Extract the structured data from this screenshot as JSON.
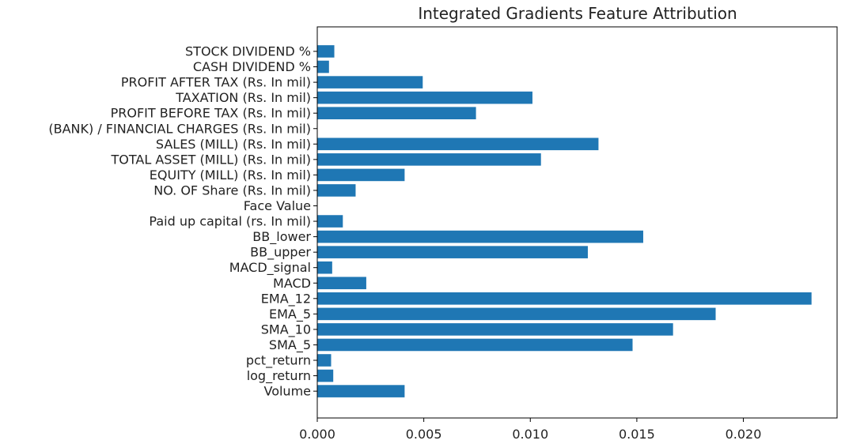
{
  "chart_data": {
    "type": "bar",
    "orientation": "horizontal",
    "title": "Integrated Gradients Feature Attribution",
    "xlabel": "",
    "ylabel": "",
    "xlim": [
      0,
      0.0244
    ],
    "xticks": [
      "0.000",
      "0.005",
      "0.010",
      "0.015",
      "0.020"
    ],
    "xtick_values": [
      0,
      0.005,
      0.01,
      0.015,
      0.02
    ],
    "grid": false,
    "bar_color": "#1f77b4",
    "categories": [
      "STOCK DIVIDEND %",
      "CASH DIVIDEND %",
      "PROFIT AFTER TAX (Rs. In mil)",
      "TAXATION (Rs. In mil)",
      "PROFIT BEFORE TAX (Rs. In mil)",
      "(BANK) / FINANCIAL CHARGES (Rs. In mil)",
      "SALES (MILL) (Rs. In mil)",
      "TOTAL ASSET (MILL) (Rs. In mil)",
      "EQUITY (MILL) (Rs. In mil)",
      "NO. OF Share (Rs. In mil)",
      "Face Value",
      "Paid up capital (rs. In mil)",
      "BB_lower",
      "BB_upper",
      "MACD_signal",
      "MACD",
      "EMA_12",
      "EMA_5",
      "SMA_10",
      "SMA_5",
      "pct_return",
      "log_return",
      "Volume"
    ],
    "values": [
      0.0008,
      0.00055,
      0.00495,
      0.0101,
      0.00745,
      0.0,
      0.0132,
      0.0105,
      0.0041,
      0.0018,
      0.0,
      0.0012,
      0.0153,
      0.0127,
      0.0007,
      0.0023,
      0.0232,
      0.0187,
      0.0167,
      0.0148,
      0.00065,
      0.00075,
      0.0041
    ]
  }
}
